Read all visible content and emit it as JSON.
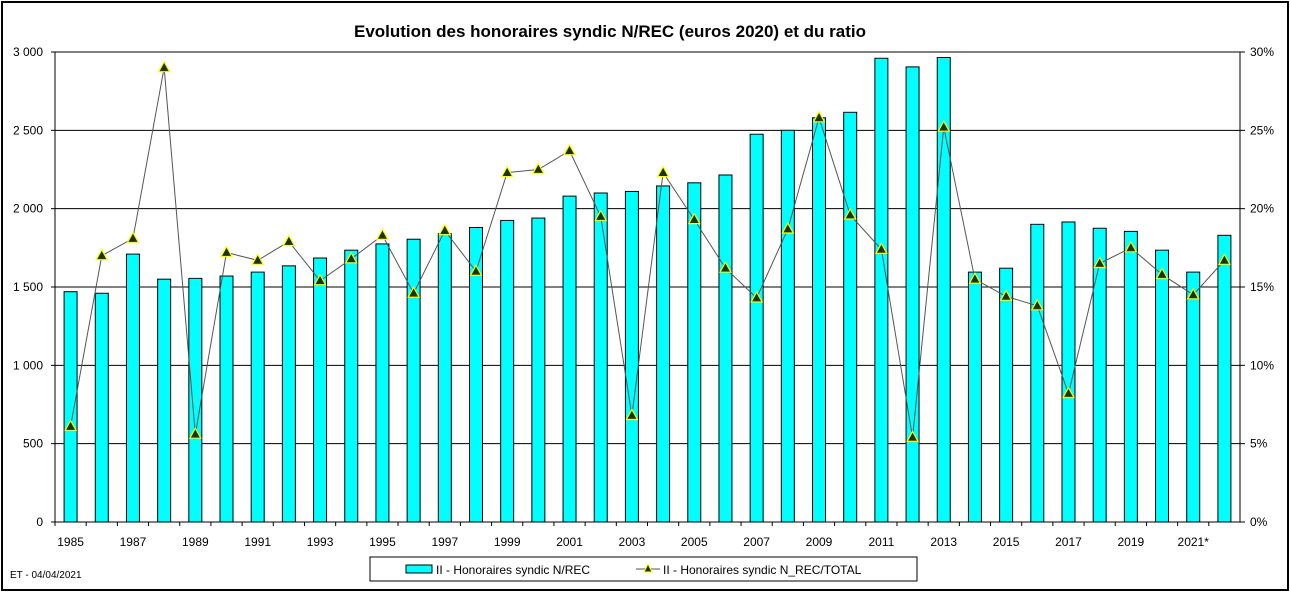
{
  "chart_data": {
    "type": "bar+line",
    "title": "Evolution des honoraires syndic N/REC (euros 2020) et du ratio",
    "footnote": "ET -  04/04/2021",
    "categories": [
      "1985",
      "1986",
      "1987",
      "1988",
      "1989",
      "1990",
      "1991",
      "1992",
      "1993",
      "1994",
      "1995",
      "1996",
      "1997",
      "1998",
      "1999",
      "2000",
      "2001",
      "2002",
      "2003",
      "2004",
      "2005",
      "2006",
      "2007",
      "2008",
      "2009",
      "2010",
      "2011",
      "2012",
      "2013",
      "2014",
      "2015",
      "2016",
      "2017",
      "2018",
      "2019",
      "2020",
      "2021*",
      "2022"
    ],
    "x_tick_labels": [
      "1985",
      "",
      "1987",
      "",
      "1989",
      "",
      "1991",
      "",
      "1993",
      "",
      "1995",
      "",
      "1997",
      "",
      "1999",
      "",
      "2001",
      "",
      "2003",
      "",
      "2005",
      "",
      "2007",
      "",
      "2009",
      "",
      "2011",
      "",
      "2013",
      "",
      "2015",
      "",
      "2017",
      "",
      "2019",
      "",
      "2021*",
      ""
    ],
    "series": [
      {
        "name": "II - Honoraires syndic N/REC",
        "type": "bar",
        "axis": "left",
        "color": "#00FFFF",
        "values": [
          1470,
          1460,
          1710,
          1550,
          1555,
          1570,
          1595,
          1635,
          1685,
          1735,
          1775,
          1805,
          1840,
          1880,
          1925,
          1940,
          2080,
          2100,
          2110,
          2145,
          2165,
          2215,
          2475,
          2500,
          2580,
          2615,
          2960,
          2905,
          2965,
          1595,
          1620,
          1900,
          1915,
          1875,
          1855,
          1735,
          1595,
          1830
        ]
      },
      {
        "name": "II - Honoraires syndic N_REC/TOTAL",
        "type": "line",
        "axis": "right",
        "color": "#555555",
        "marker_color": "#1a3300",
        "marker_edge": "#FFFF00",
        "values": [
          6.1,
          17.0,
          18.1,
          29.0,
          5.6,
          17.2,
          16.7,
          17.9,
          15.4,
          16.8,
          18.3,
          14.6,
          18.6,
          16.0,
          22.3,
          22.5,
          23.7,
          19.5,
          6.8,
          22.3,
          19.3,
          16.2,
          14.3,
          18.7,
          25.8,
          19.6,
          17.4,
          5.4,
          25.2,
          15.5,
          14.4,
          13.8,
          8.2,
          16.5,
          17.5,
          15.8,
          14.5,
          16.7
        ]
      }
    ],
    "y_left": {
      "ylim": [
        0,
        3000
      ],
      "ticks": [
        0,
        500,
        1000,
        1500,
        2000,
        2500,
        3000
      ],
      "tick_labels": [
        "0",
        "500",
        "1 000",
        "1 500",
        "2 000",
        "2 500",
        "3 000"
      ]
    },
    "y_right": {
      "ylim": [
        0,
        30
      ],
      "ticks": [
        0,
        5,
        10,
        15,
        20,
        25,
        30
      ],
      "tick_labels": [
        "0%",
        "5%",
        "10%",
        "15%",
        "20%",
        "25%",
        "30%"
      ]
    },
    "grid": true,
    "legend_position": "bottom-center"
  }
}
